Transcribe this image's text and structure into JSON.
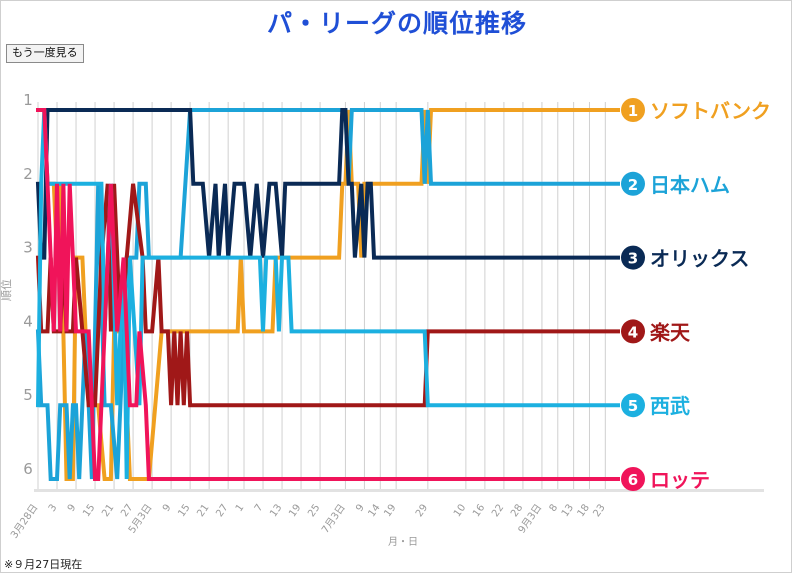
{
  "title": "パ・リーグの順位推移",
  "replay_button": "もう一度見る",
  "footnote": "※９月27日現在",
  "chart_data": {
    "type": "line",
    "title": "パ・リーグの順位推移",
    "xlabel": "月・日",
    "ylabel": "順位",
    "y_ticks": [
      1,
      2,
      3,
      4,
      5,
      6
    ],
    "ylim": [
      1,
      6
    ],
    "y_inverted": true,
    "x_range": [
      "3/28",
      "9/27"
    ],
    "x_tick_labels": [
      {
        "date": "3/28",
        "label": "3月28日"
      },
      {
        "date": "4/3",
        "label": "3"
      },
      {
        "date": "4/9",
        "label": "9"
      },
      {
        "date": "4/15",
        "label": "15"
      },
      {
        "date": "4/21",
        "label": "21"
      },
      {
        "date": "4/27",
        "label": "27"
      },
      {
        "date": "5/3",
        "label": "5月3日"
      },
      {
        "date": "5/9",
        "label": "9"
      },
      {
        "date": "5/15",
        "label": "15"
      },
      {
        "date": "5/21",
        "label": "21"
      },
      {
        "date": "5/27",
        "label": "27"
      },
      {
        "date": "6/1",
        "label": "1"
      },
      {
        "date": "6/7",
        "label": "7"
      },
      {
        "date": "6/13",
        "label": "13"
      },
      {
        "date": "6/19",
        "label": "19"
      },
      {
        "date": "6/25",
        "label": "25"
      },
      {
        "date": "7/3",
        "label": "7月3日"
      },
      {
        "date": "7/9",
        "label": "9"
      },
      {
        "date": "7/14",
        "label": "14"
      },
      {
        "date": "7/19",
        "label": "19"
      },
      {
        "date": "7/29",
        "label": "29"
      },
      {
        "date": "8/10",
        "label": "10"
      },
      {
        "date": "8/16",
        "label": "16"
      },
      {
        "date": "8/22",
        "label": "22"
      },
      {
        "date": "8/28",
        "label": "28"
      },
      {
        "date": "9/3",
        "label": "9月3日"
      },
      {
        "date": "9/8",
        "label": "8"
      },
      {
        "date": "9/13",
        "label": "13"
      },
      {
        "date": "9/18",
        "label": "18"
      },
      {
        "date": "9/23",
        "label": "23"
      }
    ],
    "grid": true,
    "legend_position": "right",
    "series": [
      {
        "name": "ソフトバンク",
        "final_rank": 1,
        "color": "#f0a020",
        "points": [
          [
            "3/28",
            1
          ],
          [
            "3/30",
            1
          ],
          [
            "3/31",
            2
          ],
          [
            "4/2",
            2
          ],
          [
            "4/3",
            3
          ],
          [
            "4/4",
            2
          ],
          [
            "4/6",
            6
          ],
          [
            "4/8",
            6
          ],
          [
            "4/9",
            3
          ],
          [
            "4/11",
            3
          ],
          [
            "4/13",
            5
          ],
          [
            "4/16",
            5
          ],
          [
            "4/18",
            6
          ],
          [
            "4/20",
            6
          ],
          [
            "4/21",
            4
          ],
          [
            "4/24",
            4
          ],
          [
            "4/26",
            6
          ],
          [
            "4/30",
            6
          ],
          [
            "5/2",
            6
          ],
          [
            "5/4",
            5
          ],
          [
            "5/6",
            4
          ],
          [
            "5/12",
            4
          ],
          [
            "5/19",
            4
          ],
          [
            "5/27",
            4
          ],
          [
            "5/30",
            4
          ],
          [
            "5/31",
            3
          ],
          [
            "6/1",
            4
          ],
          [
            "6/10",
            4
          ],
          [
            "6/11",
            3
          ],
          [
            "6/20",
            3
          ],
          [
            "6/21",
            3
          ],
          [
            "6/25",
            3
          ],
          [
            "7/1",
            3
          ],
          [
            "7/2",
            2
          ],
          [
            "7/3",
            2
          ],
          [
            "7/4",
            1
          ],
          [
            "7/5",
            2
          ],
          [
            "7/7",
            2
          ],
          [
            "7/8",
            3
          ],
          [
            "7/9",
            2
          ],
          [
            "7/12",
            2
          ],
          [
            "7/27",
            2
          ],
          [
            "7/28",
            1
          ],
          [
            "7/29",
            2
          ],
          [
            "7/30",
            1
          ],
          [
            "8/5",
            1
          ],
          [
            "9/27",
            1
          ]
        ]
      },
      {
        "name": "日本ハム",
        "final_rank": 2,
        "color": "#1ca3d8",
        "points": [
          [
            "3/28",
            4
          ],
          [
            "3/29",
            5
          ],
          [
            "3/31",
            5
          ],
          [
            "4/1",
            6
          ],
          [
            "4/3",
            6
          ],
          [
            "4/4",
            5
          ],
          [
            "4/6",
            5
          ],
          [
            "4/7",
            6
          ],
          [
            "4/8",
            5
          ],
          [
            "4/9",
            5
          ],
          [
            "4/10",
            6
          ],
          [
            "4/12",
            4
          ],
          [
            "4/14",
            6
          ],
          [
            "4/16",
            2
          ],
          [
            "4/18",
            5
          ],
          [
            "4/20",
            5
          ],
          [
            "4/22",
            6
          ],
          [
            "4/24",
            4
          ],
          [
            "4/25",
            3
          ],
          [
            "4/28",
            3
          ],
          [
            "4/29",
            2
          ],
          [
            "5/1",
            2
          ],
          [
            "5/2",
            3
          ],
          [
            "5/4",
            3
          ],
          [
            "5/12",
            3
          ],
          [
            "5/15",
            1
          ],
          [
            "5/19",
            1
          ],
          [
            "5/27",
            1
          ],
          [
            "6/1",
            1
          ],
          [
            "6/10",
            1
          ],
          [
            "6/20",
            1
          ],
          [
            "6/30",
            1
          ],
          [
            "7/3",
            1
          ],
          [
            "7/4",
            2
          ],
          [
            "7/5",
            1
          ],
          [
            "7/8",
            1
          ],
          [
            "7/15",
            1
          ],
          [
            "7/27",
            1
          ],
          [
            "7/28",
            2
          ],
          [
            "7/29",
            1
          ],
          [
            "7/30",
            2
          ],
          [
            "8/5",
            2
          ],
          [
            "9/27",
            2
          ]
        ]
      },
      {
        "name": "オリックス",
        "final_rank": 3,
        "color": "#0a2a55",
        "points": [
          [
            "3/28",
            2
          ],
          [
            "3/29",
            3
          ],
          [
            "3/30",
            3
          ],
          [
            "3/31",
            1
          ],
          [
            "4/3",
            1
          ],
          [
            "4/10",
            1
          ],
          [
            "4/20",
            1
          ],
          [
            "5/1",
            1
          ],
          [
            "5/10",
            1
          ],
          [
            "5/15",
            1
          ],
          [
            "5/16",
            2
          ],
          [
            "5/19",
            2
          ],
          [
            "5/21",
            3
          ],
          [
            "5/23",
            2
          ],
          [
            "5/24",
            3
          ],
          [
            "5/26",
            2
          ],
          [
            "5/27",
            3
          ],
          [
            "5/29",
            2
          ],
          [
            "6/1",
            2
          ],
          [
            "6/3",
            3
          ],
          [
            "6/5",
            2
          ],
          [
            "6/7",
            3
          ],
          [
            "6/9",
            2
          ],
          [
            "6/11",
            2
          ],
          [
            "6/13",
            3
          ],
          [
            "6/14",
            2
          ],
          [
            "6/20",
            2
          ],
          [
            "6/25",
            2
          ],
          [
            "7/1",
            2
          ],
          [
            "7/2",
            1
          ],
          [
            "7/3",
            1
          ],
          [
            "7/4",
            2
          ],
          [
            "7/5",
            2
          ],
          [
            "7/6",
            3
          ],
          [
            "7/8",
            2
          ],
          [
            "7/9",
            3
          ],
          [
            "7/10",
            2
          ],
          [
            "7/11",
            2
          ],
          [
            "7/12",
            3
          ],
          [
            "7/15",
            3
          ],
          [
            "7/29",
            3
          ],
          [
            "8/10",
            3
          ],
          [
            "9/27",
            3
          ]
        ]
      },
      {
        "name": "楽天",
        "final_rank": 4,
        "color": "#a01818",
        "points": [
          [
            "3/28",
            3
          ],
          [
            "3/29",
            4
          ],
          [
            "3/31",
            4
          ],
          [
            "4/1",
            3
          ],
          [
            "4/2",
            4
          ],
          [
            "4/4",
            4
          ],
          [
            "4/5",
            3
          ],
          [
            "4/6",
            4
          ],
          [
            "4/8",
            4
          ],
          [
            "4/9",
            3
          ],
          [
            "4/11",
            4
          ],
          [
            "4/13",
            5
          ],
          [
            "4/15",
            5
          ],
          [
            "4/17",
            3
          ],
          [
            "4/19",
            2
          ],
          [
            "4/20",
            4
          ],
          [
            "4/21",
            2
          ],
          [
            "4/23",
            4
          ],
          [
            "4/25",
            3
          ],
          [
            "4/27",
            2
          ],
          [
            "4/30",
            3
          ],
          [
            "5/1",
            4
          ],
          [
            "5/3",
            4
          ],
          [
            "5/5",
            3
          ],
          [
            "5/6",
            4
          ],
          [
            "5/8",
            4
          ],
          [
            "5/9",
            5
          ],
          [
            "5/10",
            4
          ],
          [
            "5/11",
            5
          ],
          [
            "5/12",
            4
          ],
          [
            "5/13",
            5
          ],
          [
            "5/14",
            4
          ],
          [
            "5/15",
            5
          ],
          [
            "5/20",
            5
          ],
          [
            "6/1",
            5
          ],
          [
            "6/20",
            5
          ],
          [
            "7/1",
            5
          ],
          [
            "7/10",
            5
          ],
          [
            "7/20",
            5
          ],
          [
            "7/28",
            5
          ],
          [
            "7/29",
            4
          ],
          [
            "8/5",
            4
          ],
          [
            "9/27",
            4
          ]
        ]
      },
      {
        "name": "西武",
        "final_rank": 5,
        "color": "#1cb0e0",
        "points": [
          [
            "3/28",
            5
          ],
          [
            "3/29",
            2
          ],
          [
            "3/30",
            1
          ],
          [
            "3/31",
            2
          ],
          [
            "4/2",
            2
          ],
          [
            "4/10",
            2
          ],
          [
            "4/16",
            2
          ],
          [
            "4/17",
            2
          ],
          [
            "4/18",
            4
          ],
          [
            "4/20",
            2
          ],
          [
            "4/22",
            5
          ],
          [
            "4/24",
            3
          ],
          [
            "4/25",
            6
          ],
          [
            "4/26",
            3
          ],
          [
            "4/29",
            5
          ],
          [
            "4/30",
            3
          ],
          [
            "5/3",
            3
          ],
          [
            "5/9",
            3
          ],
          [
            "5/12",
            3
          ],
          [
            "5/15",
            3
          ],
          [
            "5/20",
            3
          ],
          [
            "6/1",
            3
          ],
          [
            "6/6",
            3
          ],
          [
            "6/7",
            4
          ],
          [
            "6/8",
            3
          ],
          [
            "6/9",
            3
          ],
          [
            "6/11",
            3
          ],
          [
            "6/12",
            4
          ],
          [
            "6/13",
            3
          ],
          [
            "6/15",
            3
          ],
          [
            "6/16",
            4
          ],
          [
            "6/20",
            4
          ],
          [
            "6/28",
            4
          ],
          [
            "7/3",
            4
          ],
          [
            "7/10",
            4
          ],
          [
            "7/20",
            4
          ],
          [
            "7/28",
            4
          ],
          [
            "7/29",
            5
          ],
          [
            "8/5",
            5
          ],
          [
            "9/27",
            5
          ]
        ]
      },
      {
        "name": "ロッテ",
        "final_rank": 6,
        "color": "#f0145a",
        "points": [
          [
            "3/28",
            1
          ],
          [
            "3/29",
            1
          ],
          [
            "3/30",
            1
          ],
          [
            "4/1",
            3
          ],
          [
            "4/2",
            4
          ],
          [
            "4/3",
            2
          ],
          [
            "4/4",
            4
          ],
          [
            "4/5",
            2
          ],
          [
            "4/6",
            4
          ],
          [
            "4/7",
            2
          ],
          [
            "4/8",
            3
          ],
          [
            "4/9",
            4
          ],
          [
            "4/11",
            4
          ],
          [
            "4/13",
            4
          ],
          [
            "4/15",
            6
          ],
          [
            "4/16",
            6
          ],
          [
            "4/17",
            5
          ],
          [
            "4/18",
            4
          ],
          [
            "4/20",
            2
          ],
          [
            "4/22",
            4
          ],
          [
            "4/24",
            3
          ],
          [
            "4/25",
            4
          ],
          [
            "4/26",
            5
          ],
          [
            "4/28",
            5
          ],
          [
            "4/29",
            4
          ],
          [
            "5/1",
            5
          ],
          [
            "5/2",
            6
          ],
          [
            "5/3",
            6
          ],
          [
            "5/15",
            6
          ],
          [
            "6/1",
            6
          ],
          [
            "7/1",
            6
          ],
          [
            "8/1",
            6
          ],
          [
            "9/1",
            6
          ],
          [
            "9/27",
            6
          ]
        ]
      }
    ]
  }
}
